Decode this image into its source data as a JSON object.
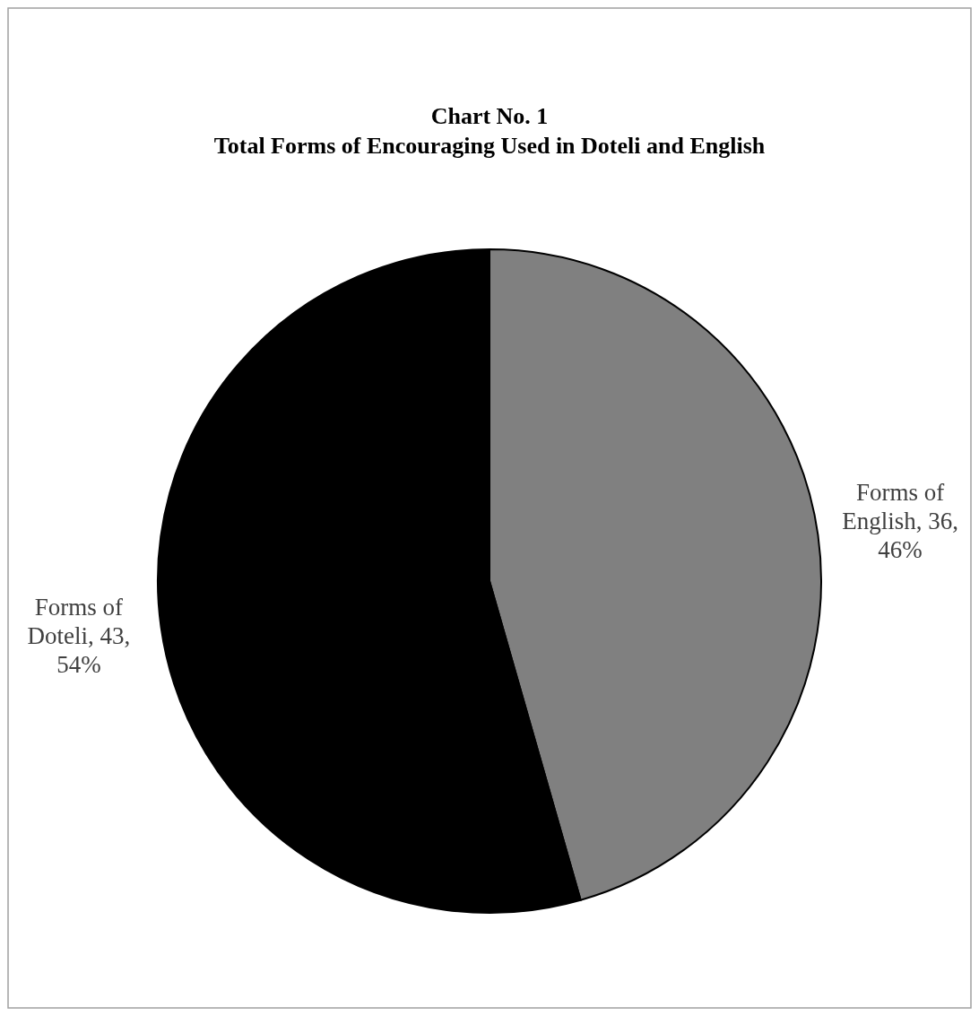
{
  "chart_data": {
    "type": "pie",
    "title": "Chart No. 1\nTotal Forms of Encouraging Used in Doteli and English",
    "categories": [
      "Forms of English",
      "Forms of Doteli"
    ],
    "values": [
      36,
      43
    ],
    "value_labels": [
      "36, 46%",
      "43, 54%"
    ],
    "colors": [
      "#808080",
      "#000000"
    ]
  }
}
